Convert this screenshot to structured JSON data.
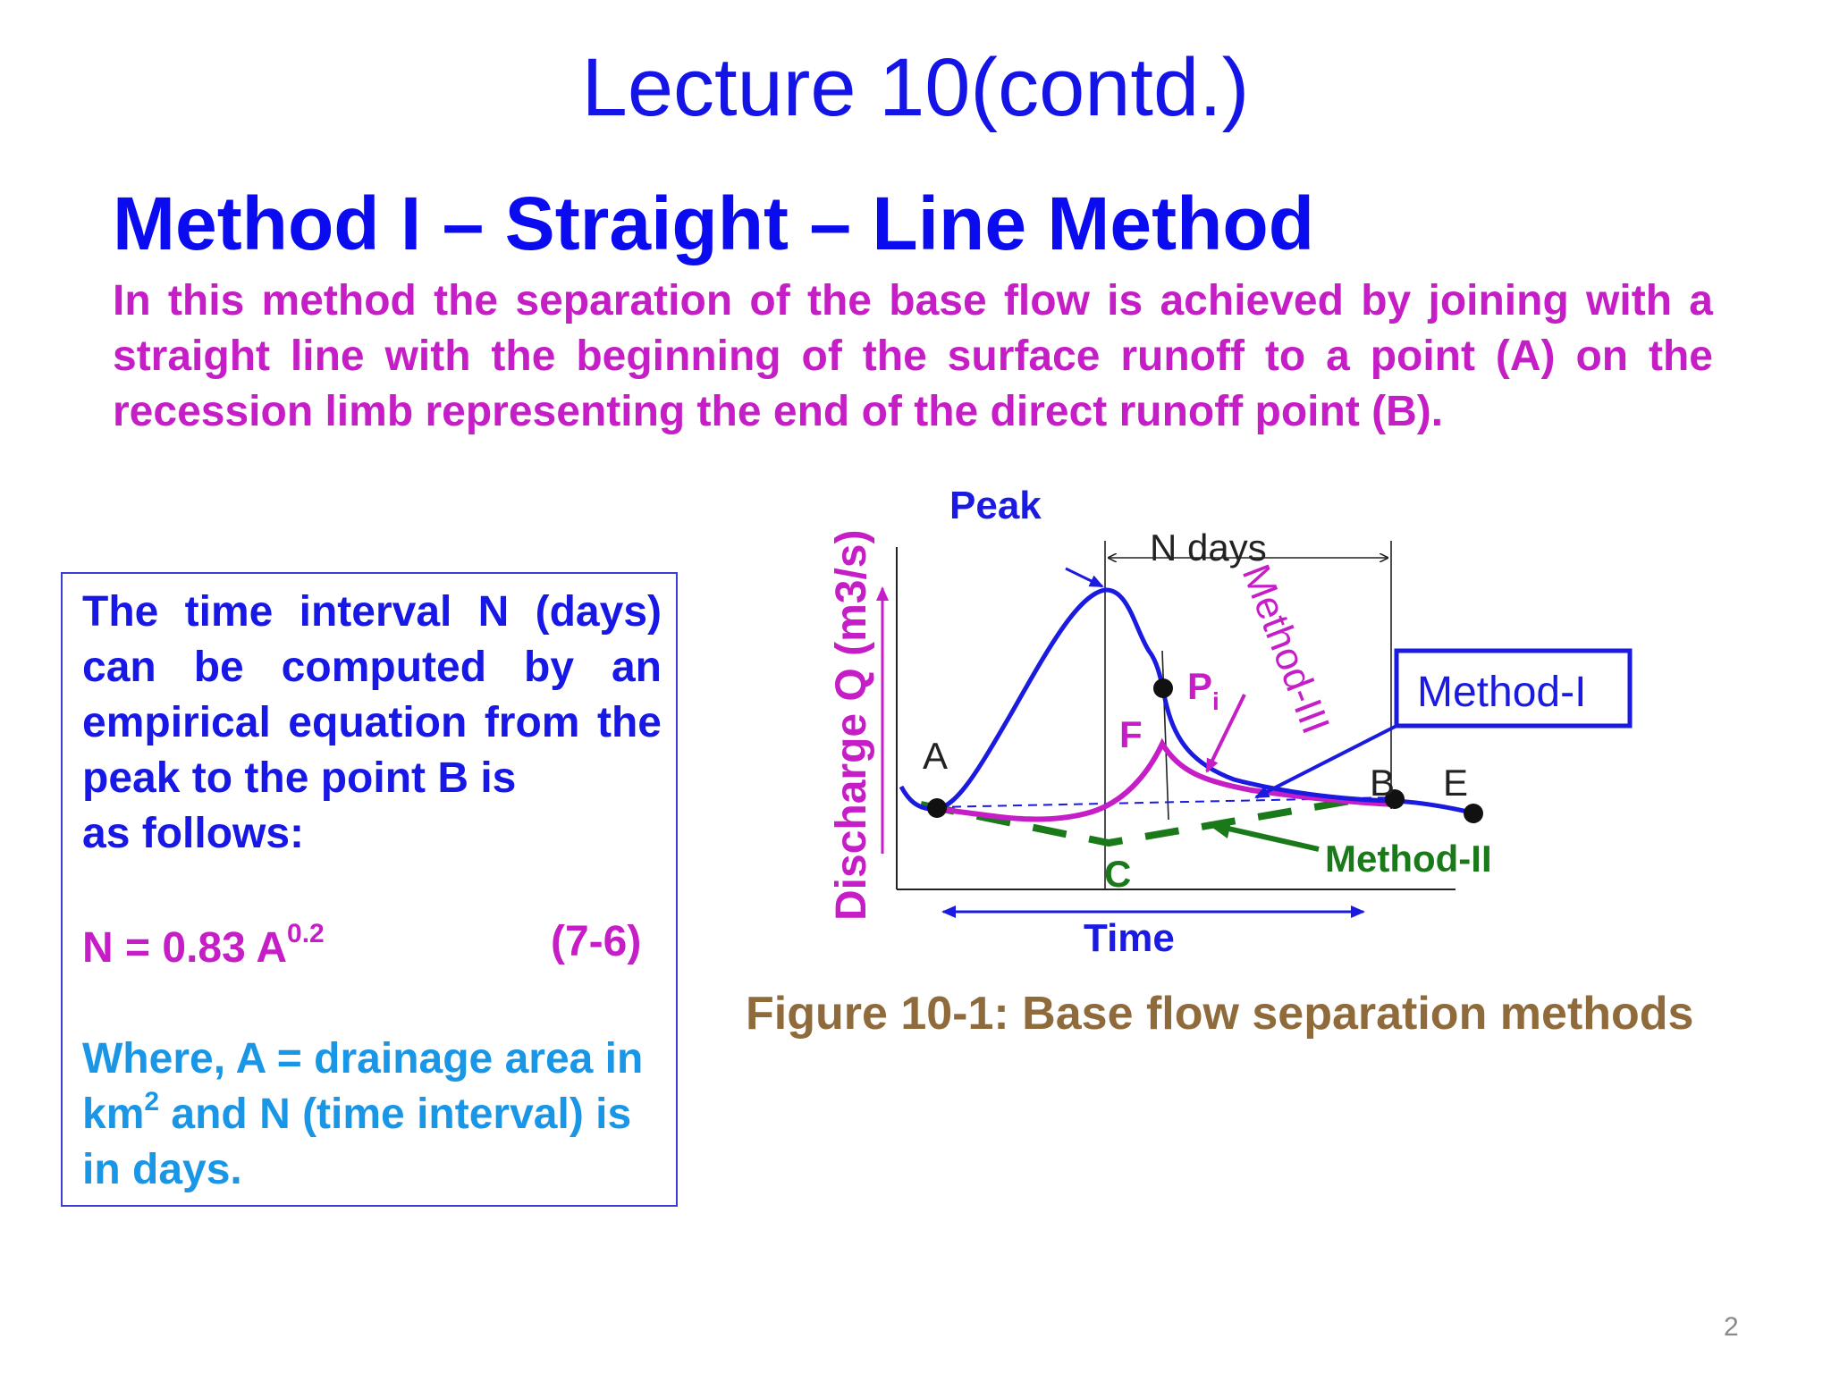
{
  "slide": {
    "title": "Lecture 10(contd.)",
    "heading": "Method I – Straight – Line Method",
    "intro": "In this method the separation of the base flow is achieved by joining with a straight line with the beginning of the surface runoff to a point (A) on the recession limb representing the end of the direct runoff  point (B).",
    "page_number": "2"
  },
  "infobox": {
    "text_main": "The time interval  N (days) can be computed by an empirical equation from the peak to the point B is",
    "text_last": "as follows:",
    "equation_base": "N = 0.83 A",
    "equation_exponent": "0.2",
    "equation_number": "(7-6)",
    "where_prefix": "Where, A = drainage area in km",
    "where_sup": "2",
    "where_suffix": " and N (time interval) is in days."
  },
  "figure": {
    "caption": "Figure 10-1: Base flow separation methods",
    "ylabel": "Discharge Q (m3/s)",
    "xlabel": "Time",
    "peak_label": "Peak",
    "n_days_label": "N days",
    "method1_label": "Method-I",
    "method2_label": "Method-II",
    "method3_label": "Method-III",
    "point_a": "A",
    "point_b": "B",
    "point_c": "C",
    "point_e": "E",
    "point_f": "F",
    "point_p": "P",
    "point_p_sub": "i",
    "colors": {
      "hydrograph": "#1a1ae0",
      "method2": "#1a7a1a",
      "method3": "#c61ec6",
      "axis": "#222222"
    }
  }
}
